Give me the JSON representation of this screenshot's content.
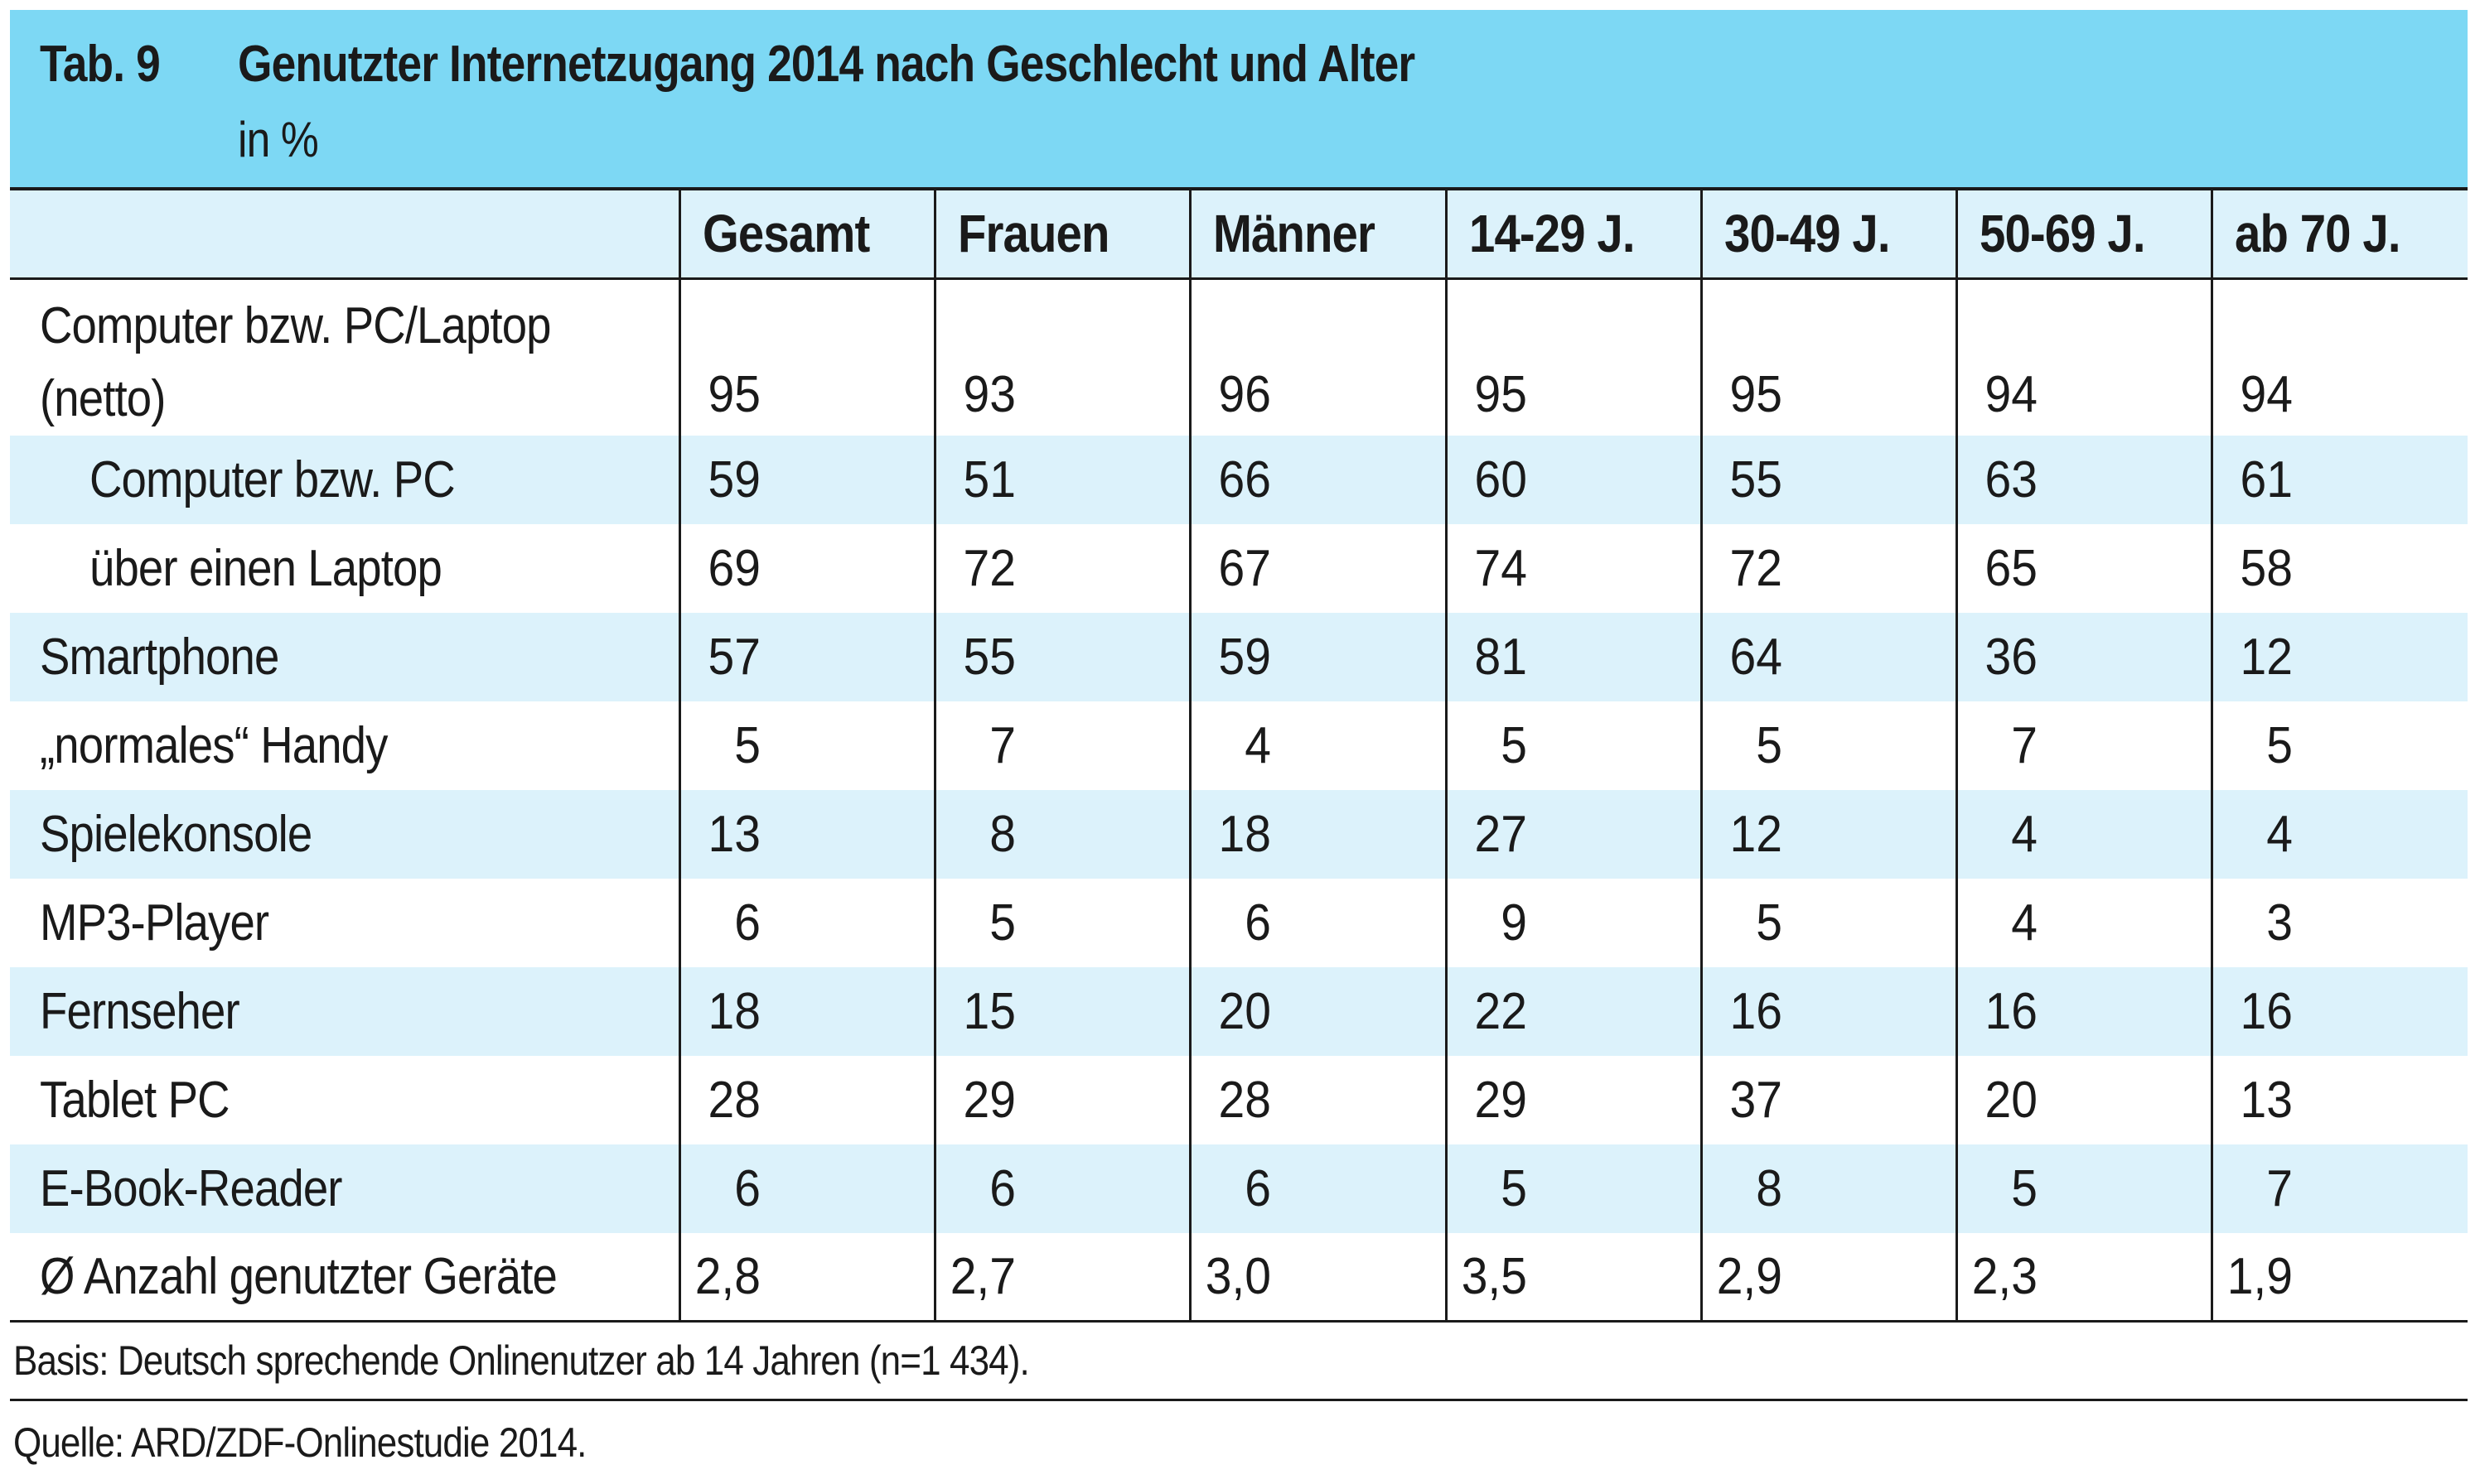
{
  "header": {
    "tab_label": "Tab. 9",
    "title": "Genutzter Internetzugang 2014 nach Geschlecht und Alter",
    "subtitle": "in %"
  },
  "chart_data": {
    "type": "table",
    "title": "Genutzter Internetzugang 2014 nach Geschlecht und Alter",
    "subtitle": "in %",
    "columns": [
      "Gesamt",
      "Frauen",
      "Männer",
      "14-29 J.",
      "30-49 J.",
      "50-69 J.",
      "ab 70 J."
    ],
    "rows": [
      {
        "label": "Computer bzw. PC/Laptop (netto)",
        "label_lines": [
          "Computer bzw. PC/Laptop",
          "(netto)"
        ],
        "indent": false,
        "values": [
          "95",
          "93",
          "96",
          "95",
          "95",
          "94",
          "94"
        ]
      },
      {
        "label": "Computer bzw. PC",
        "indent": true,
        "values": [
          "59",
          "51",
          "66",
          "60",
          "55",
          "63",
          "61"
        ]
      },
      {
        "label": "über einen Laptop",
        "indent": true,
        "values": [
          "69",
          "72",
          "67",
          "74",
          "72",
          "65",
          "58"
        ]
      },
      {
        "label": "Smartphone",
        "indent": false,
        "values": [
          "57",
          "55",
          "59",
          "81",
          "64",
          "36",
          "12"
        ]
      },
      {
        "label": "„normales“ Handy",
        "indent": false,
        "values": [
          "5",
          "7",
          "4",
          "5",
          "5",
          "7",
          "5"
        ]
      },
      {
        "label": "Spielekonsole",
        "indent": false,
        "values": [
          "13",
          "8",
          "18",
          "27",
          "12",
          "4",
          "4"
        ]
      },
      {
        "label": "MP3-Player",
        "indent": false,
        "values": [
          "6",
          "5",
          "6",
          "9",
          "5",
          "4",
          "3"
        ]
      },
      {
        "label": "Fernseher",
        "indent": false,
        "values": [
          "18",
          "15",
          "20",
          "22",
          "16",
          "16",
          "16"
        ]
      },
      {
        "label": "Tablet PC",
        "indent": false,
        "values": [
          "28",
          "29",
          "28",
          "29",
          "37",
          "20",
          "13"
        ]
      },
      {
        "label": "E-Book-Reader",
        "indent": false,
        "values": [
          "6",
          "6",
          "6",
          "5",
          "8",
          "5",
          "7"
        ]
      },
      {
        "label": "Ø Anzahl genutzter Geräte",
        "indent": false,
        "values": [
          "2,8",
          "2,7",
          "3,0",
          "3,5",
          "2,9",
          "2,3",
          "1,9"
        ]
      }
    ]
  },
  "footer": {
    "basis": "Basis: Deutsch sprechende Onlinenutzer ab 14 Jahren (n=1 434).",
    "quelle": "Quelle: ARD/ZDF-Onlinestudie 2014."
  },
  "colors": {
    "header_bg": "#7dd8f4",
    "row_shade": "#dcf2fb",
    "rule": "#1a1a1a"
  }
}
